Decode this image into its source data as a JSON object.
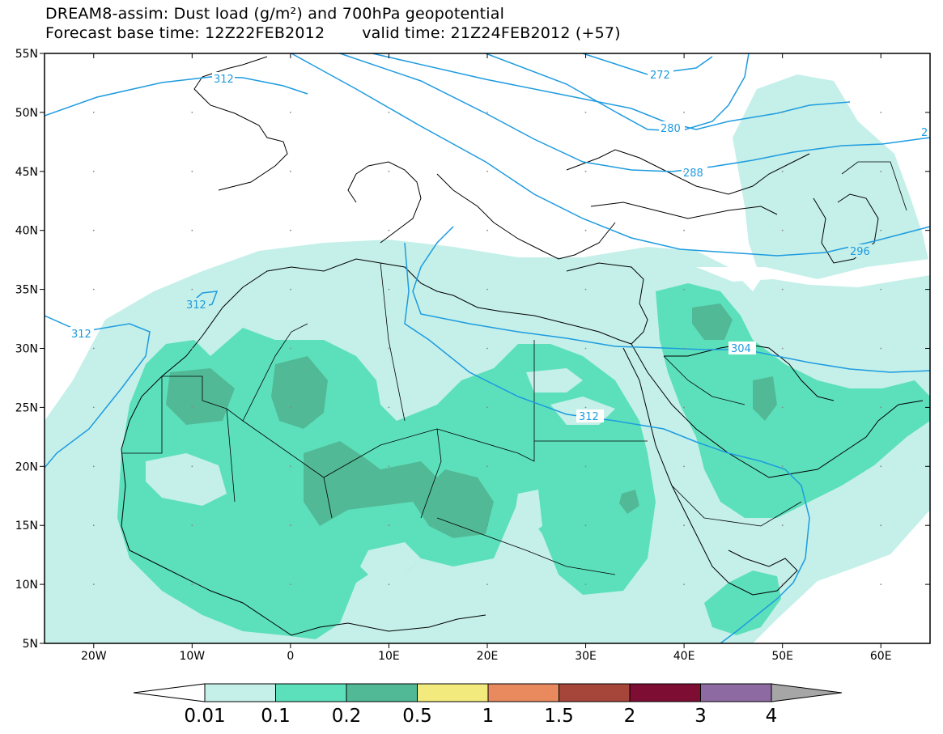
{
  "header": {
    "title_line1": "DREAM8-assim: Dust load (g/m²) and 700hPa geopotential",
    "base_time": "Forecast base time: 12Z22FEB2012",
    "valid_time": "valid time: 21Z24FEB2012 (+57)"
  },
  "map": {
    "lon_range": [
      -25,
      65
    ],
    "lat_range": [
      5,
      55
    ],
    "lon_ticks": [
      {
        "lon": -20,
        "label": "20W"
      },
      {
        "lon": -10,
        "label": "10W"
      },
      {
        "lon": 0,
        "label": "0"
      },
      {
        "lon": 10,
        "label": "10E"
      },
      {
        "lon": 20,
        "label": "20E"
      },
      {
        "lon": 30,
        "label": "30E"
      },
      {
        "lon": 40,
        "label": "40E"
      },
      {
        "lon": 50,
        "label": "50E"
      },
      {
        "lon": 60,
        "label": "60E"
      }
    ],
    "lat_ticks": [
      {
        "lat": 55,
        "label": "55N"
      },
      {
        "lat": 50,
        "label": "50N"
      },
      {
        "lat": 45,
        "label": "45N"
      },
      {
        "lat": 40,
        "label": "40N"
      },
      {
        "lat": 35,
        "label": "35N"
      },
      {
        "lat": 30,
        "label": "30N"
      },
      {
        "lat": 25,
        "label": "25N"
      },
      {
        "lat": 20,
        "label": "20N"
      },
      {
        "lat": 15,
        "label": "15N"
      },
      {
        "lat": 10,
        "label": "10N"
      },
      {
        "lat": 5,
        "label": "5N"
      }
    ],
    "contour_color": "#1e9be0",
    "contour_labels": [
      "272",
      "280",
      "288",
      "296",
      "304",
      "312",
      "312",
      "312",
      "312",
      "2"
    ]
  },
  "legend": {
    "labels": [
      "0.01",
      "0.1",
      "0.2",
      "0.5",
      "1",
      "1.5",
      "2",
      "3",
      "4"
    ],
    "colors": [
      "#ffffff",
      "#c4f0e9",
      "#5ce0bb",
      "#52b996",
      "#f3ea7e",
      "#e8895e",
      "#a6453a",
      "#7d0d32",
      "#8d6aa2",
      "#a6a6a6"
    ]
  }
}
